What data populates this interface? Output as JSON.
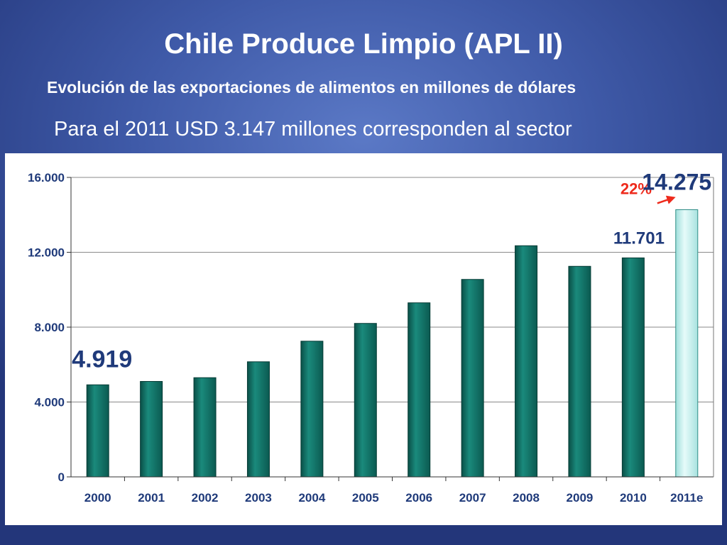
{
  "slide": {
    "title": "Chile Produce Limpio (APL II)",
    "subtitle": "Evolución de las exportaciones de alimentos en millones de dólares",
    "note": "Para el 2011 USD 3.147 millones corresponden al sector"
  },
  "chart_data": {
    "type": "bar",
    "categories": [
      "2000",
      "2001",
      "2002",
      "2003",
      "2004",
      "2005",
      "2006",
      "2007",
      "2008",
      "2009",
      "2010",
      "2011e"
    ],
    "values": [
      4919,
      5100,
      5300,
      6150,
      7250,
      8200,
      9300,
      10550,
      12350,
      11250,
      11701,
      14275
    ],
    "ylim": [
      0,
      16000
    ],
    "yticks": [
      0,
      4000,
      8000,
      12000,
      16000
    ],
    "ytick_labels": [
      "0",
      "4.000",
      "8.000",
      "12.000",
      "16.000"
    ],
    "grid": true,
    "colors": {
      "bar": "#0e6e63",
      "bar_estimate": "#c9f0ef",
      "growth": "#ee2a1c",
      "label": "#1f3a7a"
    },
    "annotations": {
      "start_label": "4.919",
      "end_label": "14.275",
      "prev_label": "11.701",
      "growth_label": "22%"
    }
  }
}
